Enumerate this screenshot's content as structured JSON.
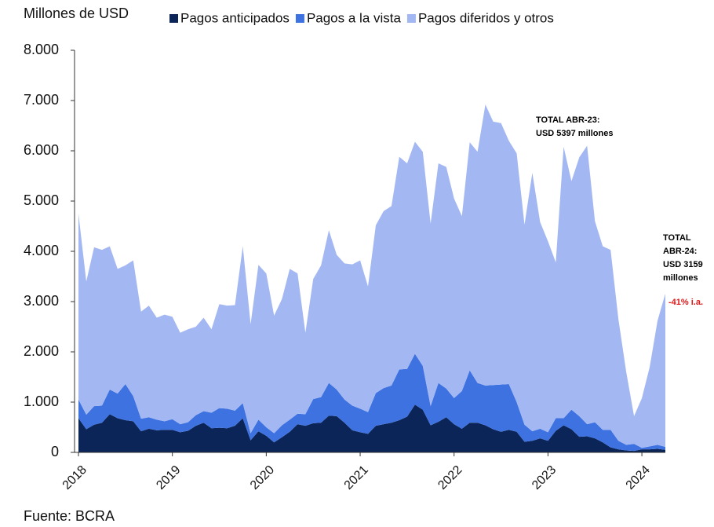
{
  "chart_data": {
    "type": "stacked_area",
    "y_axis_label": "Millones de USD",
    "source": "Fuente: BCRA",
    "legend": "top",
    "categories": [
      "2018",
      null,
      null,
      null,
      null,
      null,
      null,
      null,
      null,
      null,
      null,
      null,
      "2019",
      null,
      null,
      null,
      null,
      null,
      null,
      null,
      null,
      null,
      null,
      null,
      "2020",
      null,
      null,
      null,
      null,
      null,
      null,
      null,
      null,
      null,
      null,
      null,
      "2021",
      null,
      null,
      null,
      null,
      null,
      null,
      null,
      null,
      null,
      null,
      null,
      "2022",
      null,
      null,
      null,
      null,
      null,
      null,
      null,
      null,
      null,
      null,
      null,
      "2023",
      null,
      null,
      null,
      null,
      null,
      null,
      null,
      null,
      null,
      null,
      null,
      "2024",
      null,
      null,
      null
    ],
    "series": [
      {
        "name": "Pagos anticipados",
        "color": "#0b2558",
        "values": [
          680,
          460,
          550,
          590,
          760,
          680,
          640,
          620,
          420,
          470,
          440,
          450,
          450,
          400,
          430,
          530,
          590,
          480,
          490,
          480,
          530,
          680,
          240,
          420,
          330,
          200,
          300,
          410,
          560,
          530,
          580,
          590,
          730,
          720,
          590,
          440,
          400,
          370,
          530,
          560,
          590,
          640,
          710,
          950,
          850,
          540,
          610,
          700,
          560,
          470,
          590,
          590,
          540,
          460,
          410,
          450,
          410,
          210,
          230,
          280,
          230,
          430,
          540,
          460,
          310,
          320,
          280,
          200,
          100,
          60,
          40,
          30,
          60,
          60,
          70,
          50
        ]
      },
      {
        "name": "Pagos a la vista",
        "color": "#3d72e0",
        "values": [
          370,
          290,
          370,
          340,
          490,
          490,
          720,
          500,
          250,
          230,
          210,
          170,
          210,
          160,
          170,
          210,
          230,
          310,
          390,
          390,
          300,
          300,
          140,
          230,
          170,
          180,
          240,
          240,
          210,
          230,
          480,
          510,
          650,
          530,
          460,
          490,
          470,
          430,
          650,
          720,
          740,
          1010,
          950,
          1010,
          870,
          380,
          770,
          570,
          520,
          750,
          1040,
          790,
          790,
          880,
          940,
          910,
          590,
          340,
          190,
          190,
          170,
          250,
          140,
          390,
          410,
          240,
          320,
          250,
          350,
          170,
          110,
          140,
          30,
          60,
          80,
          60
        ]
      },
      {
        "name": "Pagos diferidos y otros",
        "color": "#a3b7f2",
        "values": [
          3700,
          2650,
          3160,
          3100,
          2850,
          2480,
          2360,
          2700,
          2130,
          2220,
          2030,
          2120,
          2040,
          1820,
          1850,
          1760,
          1860,
          1660,
          2070,
          2050,
          2100,
          3120,
          2170,
          3080,
          3060,
          2340,
          2510,
          3000,
          2790,
          1620,
          2390,
          2620,
          3040,
          2680,
          2710,
          2810,
          2950,
          2500,
          3340,
          3520,
          3570,
          4230,
          4090,
          4220,
          4260,
          3630,
          4370,
          4410,
          3970,
          3480,
          4540,
          4600,
          5590,
          5240,
          5200,
          4840,
          4950,
          3980,
          5140,
          4110,
          3800,
          3100,
          5400,
          4547,
          5150,
          5540,
          4000,
          3650,
          3580,
          2420,
          1450,
          550,
          990,
          1580,
          2470,
          3049
        ]
      }
    ],
    "ylim": [
      0,
      8000
    ],
    "yticks": [
      0,
      {
        "value": 1000,
        "label": "1.000"
      },
      {
        "value": 2000,
        "label": "2.000"
      },
      {
        "value": 3000,
        "label": "3.000"
      },
      {
        "value": 4000,
        "label": "4.000"
      },
      {
        "value": 5000,
        "label": "5.000"
      },
      {
        "value": 6000,
        "label": "6.000"
      },
      {
        "value": 7000,
        "label": "7.000"
      },
      {
        "value": 8000,
        "label": "8.000"
      }
    ],
    "annotations": [
      {
        "lines": [
          "TOTAL ABR-23:",
          "USD 5397 millones"
        ],
        "color": "#000000"
      },
      {
        "lines": [
          "TOTAL",
          "ABR-24:",
          "USD 3159",
          "millones"
        ],
        "color": "#000000"
      },
      {
        "lines": [
          "-41% i.a."
        ],
        "color": "#e01818"
      }
    ]
  }
}
